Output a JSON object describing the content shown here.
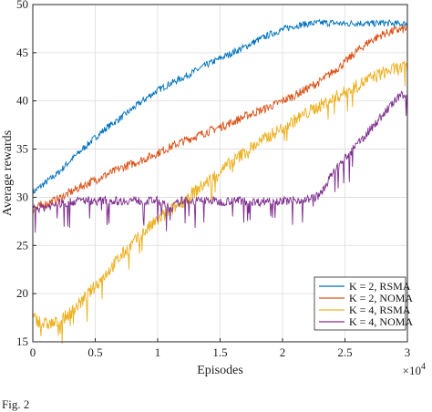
{
  "caption": "Fig. 2",
  "chart_data": {
    "type": "line",
    "xlabel": "Episodes",
    "ylabel": "Average rewards",
    "xlim": [
      0,
      3
    ],
    "ylim": [
      15,
      50
    ],
    "x_multiplier": "×10",
    "x_multiplier_exp": "4",
    "xticks": [
      0,
      0.5,
      1,
      1.5,
      2,
      2.5,
      3
    ],
    "xtick_labels": [
      "0",
      "0.5",
      "1",
      "1.5",
      "2",
      "2.5",
      "3"
    ],
    "yticks": [
      15,
      20,
      25,
      30,
      35,
      40,
      45,
      50
    ],
    "ytick_labels": [
      "15",
      "20",
      "25",
      "30",
      "35",
      "40",
      "45",
      "50"
    ],
    "grid": true,
    "legend_position": "bottom-right",
    "series": [
      {
        "name": "K = 2, RSMA",
        "color": "#0072BD",
        "x": [
          0,
          0.1,
          0.2,
          0.3,
          0.4,
          0.5,
          0.6,
          0.7,
          0.8,
          0.9,
          1.0,
          1.1,
          1.2,
          1.3,
          1.4,
          1.5,
          1.6,
          1.7,
          1.8,
          1.9,
          2.0,
          2.1,
          2.2,
          2.3,
          2.4,
          2.5,
          2.6,
          2.7,
          2.8,
          2.9,
          3.0
        ],
        "values": [
          30.5,
          31.5,
          32.5,
          33.8,
          35.0,
          36.2,
          37.3,
          38.2,
          39.2,
          40.2,
          41.1,
          41.8,
          42.4,
          43.1,
          43.8,
          44.4,
          45.0,
          45.6,
          46.3,
          46.9,
          47.4,
          47.8,
          48.0,
          48.1,
          48.1,
          48.0,
          48.1,
          48.0,
          48.1,
          48.0,
          48.0
        ]
      },
      {
        "name": "K = 2, NOMA",
        "color": "#D95319",
        "x": [
          0,
          0.1,
          0.2,
          0.3,
          0.4,
          0.5,
          0.6,
          0.7,
          0.8,
          0.9,
          1.0,
          1.1,
          1.2,
          1.3,
          1.4,
          1.5,
          1.6,
          1.7,
          1.8,
          1.9,
          2.0,
          2.1,
          2.2,
          2.3,
          2.4,
          2.5,
          2.6,
          2.7,
          2.8,
          2.9,
          3.0
        ],
        "values": [
          28.8,
          29.3,
          29.8,
          30.5,
          31.2,
          31.8,
          32.4,
          33.0,
          33.5,
          34.0,
          34.6,
          35.2,
          35.8,
          36.3,
          36.8,
          37.3,
          37.8,
          38.4,
          38.9,
          39.4,
          40.0,
          40.6,
          41.3,
          42.0,
          43.0,
          44.0,
          45.2,
          46.2,
          46.9,
          47.3,
          47.5
        ]
      },
      {
        "name": "K = 4, RSMA",
        "color": "#EDB120",
        "x": [
          0,
          0.1,
          0.2,
          0.3,
          0.4,
          0.5,
          0.6,
          0.7,
          0.8,
          0.9,
          1.0,
          1.1,
          1.2,
          1.3,
          1.4,
          1.5,
          1.6,
          1.7,
          1.8,
          1.9,
          2.0,
          2.1,
          2.2,
          2.3,
          2.4,
          2.5,
          2.6,
          2.7,
          2.8,
          2.9,
          3.0
        ],
        "values": [
          17.5,
          16.8,
          17.0,
          18.0,
          19.3,
          20.8,
          22.3,
          23.8,
          25.2,
          26.5,
          27.6,
          28.6,
          29.6,
          30.6,
          31.6,
          32.7,
          33.7,
          34.7,
          35.6,
          36.4,
          37.2,
          38.0,
          38.8,
          39.5,
          40.2,
          40.9,
          41.6,
          42.3,
          42.9,
          43.3,
          43.5
        ]
      },
      {
        "name": "K = 4, NOMA",
        "color": "#7E2F8E",
        "x": [
          0,
          0.1,
          0.2,
          0.3,
          0.4,
          0.5,
          0.6,
          0.7,
          0.8,
          0.9,
          1.0,
          1.1,
          1.2,
          1.3,
          1.4,
          1.5,
          1.6,
          1.7,
          1.8,
          1.9,
          2.0,
          2.1,
          2.2,
          2.3,
          2.4,
          2.5,
          2.6,
          2.7,
          2.8,
          2.9,
          3.0
        ],
        "values": [
          28.8,
          29.0,
          29.3,
          29.5,
          29.7,
          29.6,
          29.7,
          29.6,
          29.7,
          29.6,
          29.7,
          28.8,
          29.7,
          29.6,
          29.7,
          29.5,
          29.7,
          29.6,
          29.5,
          29.7,
          29.6,
          29.7,
          29.8,
          30.2,
          32.5,
          34.0,
          35.5,
          37.0,
          38.5,
          40.0,
          41.0
        ]
      }
    ]
  }
}
